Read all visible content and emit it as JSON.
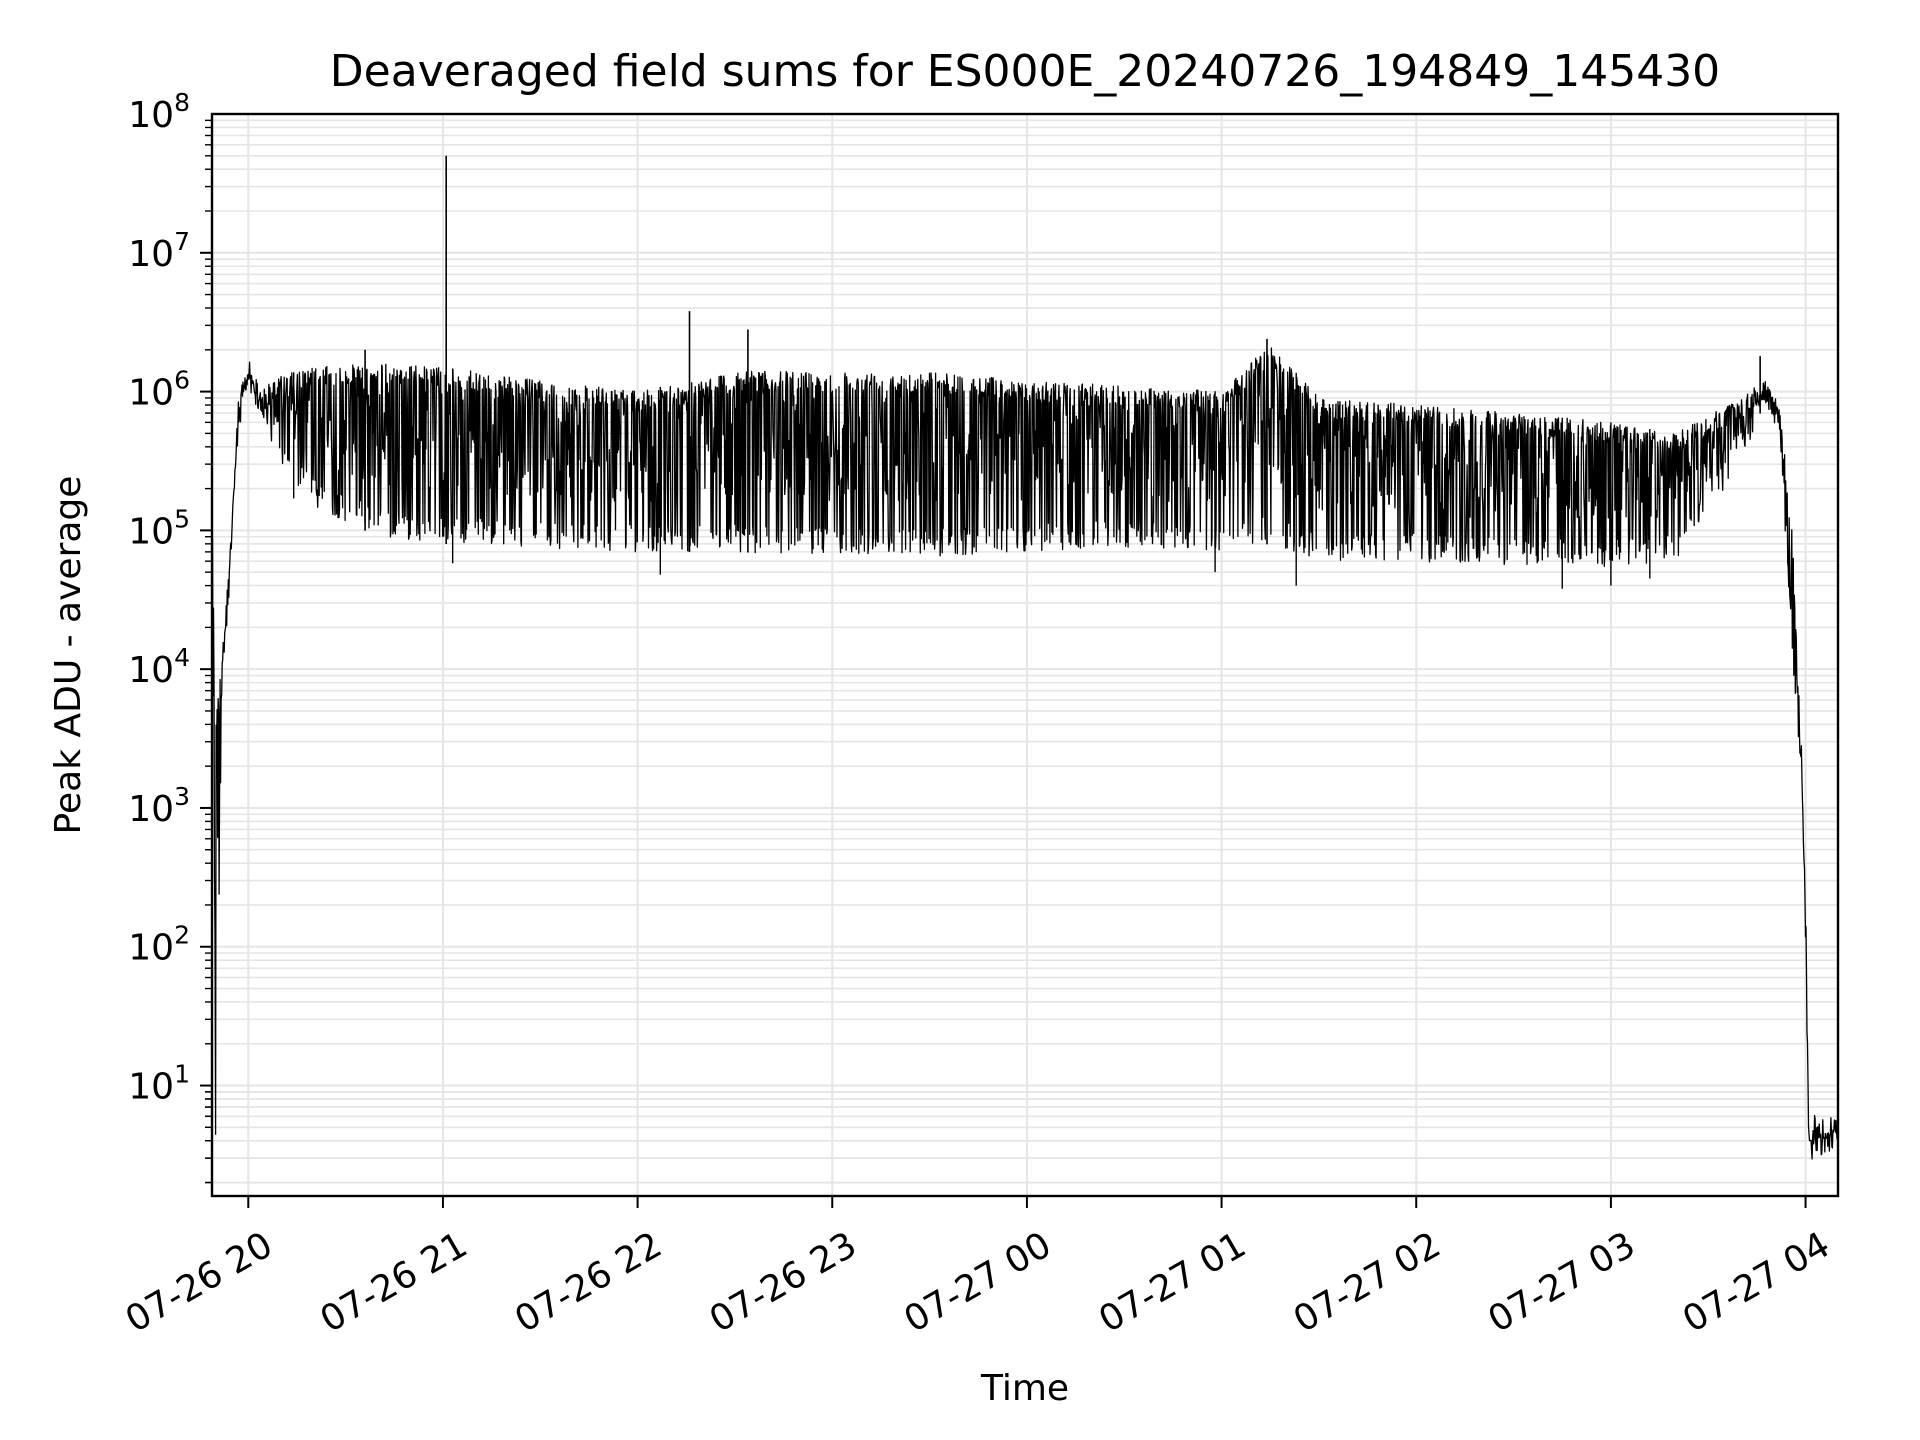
{
  "chart_data": {
    "type": "line",
    "title": "Deaveraged field sums for ES000E_20240726_194849_145430",
    "xlabel": "Time",
    "ylabel": "Peak ADU - average",
    "yscale": "log",
    "ylim": [
      1.6,
      100000000
    ],
    "xlim": [
      "2024-07-26 19:48:49",
      "2024-07-27 04:10:00"
    ],
    "grid": true,
    "line_color": "#000000",
    "grid_color": "#e5e5e5",
    "x_ticks": [
      {
        "label": "07-26 20",
        "value": "2024-07-26 20:00"
      },
      {
        "label": "07-26 21",
        "value": "2024-07-26 21:00"
      },
      {
        "label": "07-26 22",
        "value": "2024-07-26 22:00"
      },
      {
        "label": "07-26 23",
        "value": "2024-07-26 23:00"
      },
      {
        "label": "07-27 00",
        "value": "2024-07-27 00:00"
      },
      {
        "label": "07-27 01",
        "value": "2024-07-27 01:00"
      },
      {
        "label": "07-27 02",
        "value": "2024-07-27 02:00"
      },
      {
        "label": "07-27 03",
        "value": "2024-07-27 03:00"
      },
      {
        "label": "07-27 04",
        "value": "2024-07-27 04:00"
      }
    ],
    "y_ticks": [
      {
        "base": "10",
        "exp": "1",
        "value": 10
      },
      {
        "base": "10",
        "exp": "2",
        "value": 100
      },
      {
        "base": "10",
        "exp": "3",
        "value": 1000
      },
      {
        "base": "10",
        "exp": "4",
        "value": 10000
      },
      {
        "base": "10",
        "exp": "5",
        "value": 100000
      },
      {
        "base": "10",
        "exp": "6",
        "value": 1000000
      },
      {
        "base": "10",
        "exp": "7",
        "value": 10000000
      },
      {
        "base": "10",
        "exp": "8",
        "value": 100000000
      }
    ],
    "series": [
      {
        "envelope": [
          {
            "x": "2024-07-26 19:48:49",
            "low": 4,
            "high": 140000
          },
          {
            "x": "2024-07-26 19:50",
            "low": 4,
            "high": 5000
          },
          {
            "x": "2024-07-26 19:52",
            "low": 9000,
            "high": 13000
          },
          {
            "x": "2024-07-26 19:54",
            "low": 30000,
            "high": 55000
          },
          {
            "x": "2024-07-26 19:57",
            "low": 400000,
            "high": 950000
          },
          {
            "x": "2024-07-26 20:00",
            "low": 1200000,
            "high": 1500000
          },
          {
            "x": "2024-07-26 20:03",
            "low": 700000,
            "high": 1000000
          },
          {
            "x": "2024-07-26 20:10",
            "low": 300000,
            "high": 1300000
          },
          {
            "x": "2024-07-26 20:20",
            "low": 150000,
            "high": 1500000
          },
          {
            "x": "2024-07-26 20:40",
            "low": 90000,
            "high": 1600000
          },
          {
            "x": "2024-07-26 21:00",
            "low": 80000,
            "high": 1500000
          },
          {
            "x": "2024-07-26 21:30",
            "low": 75000,
            "high": 1200000
          },
          {
            "x": "2024-07-26 22:00",
            "low": 70000,
            "high": 1000000
          },
          {
            "x": "2024-07-26 22:30",
            "low": 70000,
            "high": 1400000
          },
          {
            "x": "2024-07-26 23:00",
            "low": 65000,
            "high": 1400000
          },
          {
            "x": "2024-07-26 23:30",
            "low": 65000,
            "high": 1400000
          },
          {
            "x": "2024-07-27 00:00",
            "low": 70000,
            "high": 1200000
          },
          {
            "x": "2024-07-27 00:30",
            "low": 75000,
            "high": 1100000
          },
          {
            "x": "2024-07-27 01:00",
            "low": 70000,
            "high": 1000000
          },
          {
            "x": "2024-07-27 01:15",
            "low": 80000,
            "high": 2200000
          },
          {
            "x": "2024-07-27 01:30",
            "low": 60000,
            "high": 900000
          },
          {
            "x": "2024-07-27 02:00",
            "low": 60000,
            "high": 800000
          },
          {
            "x": "2024-07-27 02:30",
            "low": 55000,
            "high": 700000
          },
          {
            "x": "2024-07-27 03:00",
            "low": 55000,
            "high": 600000
          },
          {
            "x": "2024-07-27 03:20",
            "low": 60000,
            "high": 500000
          },
          {
            "x": "2024-07-27 03:40",
            "low": 300000,
            "high": 900000
          },
          {
            "x": "2024-07-27 03:47",
            "low": 800000,
            "high": 1200000
          },
          {
            "x": "2024-07-27 03:52",
            "low": 500000,
            "high": 800000
          },
          {
            "x": "2024-07-27 03:56",
            "low": 10000,
            "high": 100000
          },
          {
            "x": "2024-07-27 03:59",
            "low": 1500,
            "high": 1500
          },
          {
            "x": "2024-07-27 04:00",
            "low": 60,
            "high": 280
          },
          {
            "x": "2024-07-27 04:01",
            "low": 4,
            "high": 4
          },
          {
            "x": "2024-07-27 04:10",
            "low": 4,
            "high": 5
          }
        ],
        "spikes": [
          {
            "x": "2024-07-26 21:01",
            "value": 50000000
          },
          {
            "x": "2024-07-26 22:16",
            "value": 3800000
          },
          {
            "x": "2024-07-26 22:34",
            "value": 2800000
          },
          {
            "x": "2024-07-26 20:36",
            "value": 2000000
          },
          {
            "x": "2024-07-27 01:14",
            "value": 2400000
          },
          {
            "x": "2024-07-27 03:46",
            "value": 1800000
          }
        ],
        "dips": [
          {
            "x": "2024-07-26 20:14",
            "value": 170000
          },
          {
            "x": "2024-07-26 21:03",
            "value": 58000
          },
          {
            "x": "2024-07-26 22:07",
            "value": 48000
          },
          {
            "x": "2024-07-27 00:58",
            "value": 50000
          },
          {
            "x": "2024-07-27 01:23",
            "value": 40000
          },
          {
            "x": "2024-07-27 02:45",
            "value": 38000
          },
          {
            "x": "2024-07-27 03:00",
            "value": 40000
          },
          {
            "x": "2024-07-27 03:12",
            "value": 45000
          }
        ]
      }
    ]
  }
}
